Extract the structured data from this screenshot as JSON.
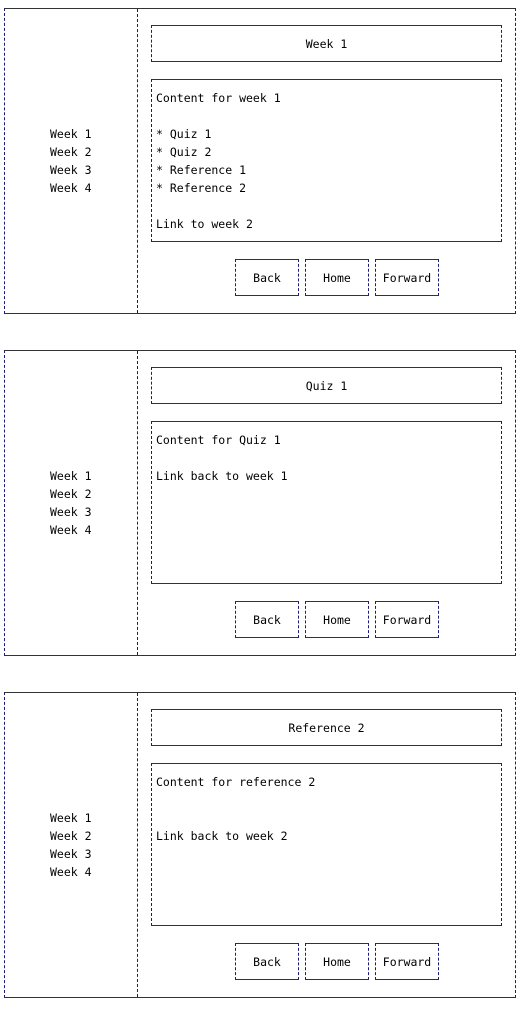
{
  "screens": [
    {
      "title": "Week 1",
      "nav": [
        "Week 1",
        "Week 2",
        "Week 3",
        "Week 4"
      ],
      "content": [
        "Content for week 1",
        "",
        "* Quiz 1",
        "* Quiz 2",
        "* Reference 1",
        "* Reference 2",
        "",
        "Link to week 2"
      ],
      "buttons": {
        "back": "Back",
        "home": "Home",
        "forward": "Forward"
      }
    },
    {
      "title": "Quiz 1",
      "nav": [
        "Week 1",
        "Week 2",
        "Week 3",
        "Week 4"
      ],
      "content": [
        "Content for Quiz 1",
        "",
        "Link back to week 1"
      ],
      "buttons": {
        "back": "Back",
        "home": "Home",
        "forward": "Forward"
      }
    },
    {
      "title": "Reference 2",
      "nav": [
        "Week 1",
        "Week 2",
        "Week 3",
        "Week 4"
      ],
      "content": [
        "Content for reference 2",
        "",
        "",
        "Link back to week 2"
      ],
      "buttons": {
        "back": "Back",
        "home": "Home",
        "forward": "Forward"
      }
    }
  ]
}
